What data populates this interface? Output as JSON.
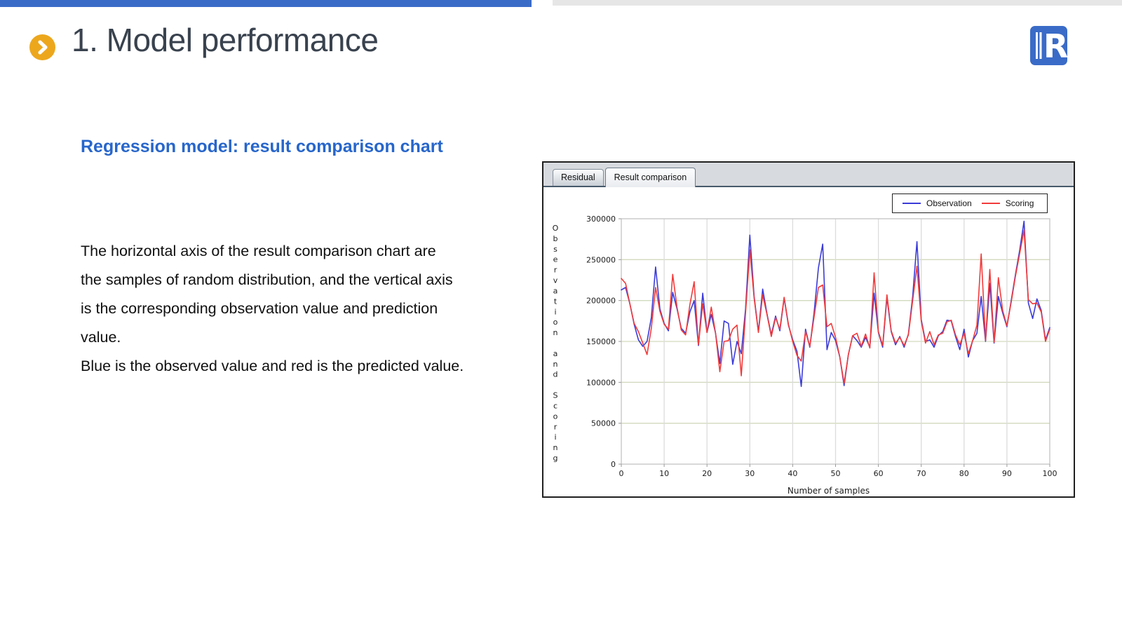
{
  "header": {
    "title": "1. Model performance",
    "bullet_icon": "chevron-right-circle",
    "logo_icon": "r-brand-logo"
  },
  "subtitle": "Regression model: result comparison chart",
  "body": {
    "lines": [
      "The horizontal axis of the result comparison chart are",
      "the samples of random distribution, and the vertical axis",
      "is the corresponding observation value and prediction",
      "value.",
      "Blue is the observed value and red is the predicted value."
    ]
  },
  "panel": {
    "tabs": [
      {
        "label": "Residual",
        "selected": false
      },
      {
        "label": "Result comparison",
        "selected": true
      }
    ]
  },
  "colors": {
    "accent_bar_blue": "#3a6bc7",
    "accent_bar_gray": "#e6e6e6",
    "bullet_amber": "#eda71d",
    "title_text": "#39424e",
    "subtitle_blue": "#2766cb",
    "observation_line": "#3b3bd9",
    "scoring_line": "#f23b3b",
    "grid_horizontal": "#d2dabe",
    "grid_vertical": "#dcdcdc",
    "plot_frame": "#c4c4c4"
  },
  "chart_data": {
    "type": "line",
    "title": "",
    "xlabel": "Number of samples",
    "ylabel": "Observation and Scoring",
    "xlim": [
      0,
      100
    ],
    "ylim": [
      0,
      300000
    ],
    "x_ticks": [
      0,
      10,
      20,
      30,
      40,
      50,
      60,
      70,
      80,
      90,
      100
    ],
    "y_ticks": [
      0,
      50000,
      100000,
      150000,
      200000,
      250000,
      300000
    ],
    "grid": true,
    "legend_position": "top-right",
    "x": [
      0,
      1,
      2,
      3,
      4,
      5,
      6,
      7,
      8,
      9,
      10,
      11,
      12,
      13,
      14,
      15,
      16,
      17,
      18,
      19,
      20,
      21,
      22,
      23,
      24,
      25,
      26,
      27,
      28,
      29,
      30,
      31,
      32,
      33,
      34,
      35,
      36,
      37,
      38,
      39,
      40,
      41,
      42,
      43,
      44,
      45,
      46,
      47,
      48,
      49,
      50,
      51,
      52,
      53,
      54,
      55,
      56,
      57,
      58,
      59,
      60,
      61,
      62,
      63,
      64,
      65,
      66,
      67,
      68,
      69,
      70,
      71,
      72,
      73,
      74,
      75,
      76,
      77,
      78,
      79,
      80,
      81,
      82,
      83,
      84,
      85,
      86,
      87,
      88,
      89,
      90,
      91,
      92,
      93,
      94,
      95,
      96,
      97,
      98,
      99,
      100
    ],
    "series": [
      {
        "name": "Observation",
        "color": "#3b3bd9",
        "values": [
          213000,
          216000,
          196000,
          171000,
          152000,
          144000,
          150000,
          179000,
          241000,
          190000,
          172000,
          163000,
          210000,
          190000,
          166000,
          160000,
          186000,
          200000,
          145000,
          209000,
          161000,
          183000,
          160000,
          123000,
          175000,
          172000,
          122000,
          150000,
          135000,
          190000,
          280000,
          205000,
          162000,
          214000,
          184000,
          158000,
          181000,
          163000,
          203000,
          170000,
          152000,
          138000,
          95000,
          165000,
          143000,
          185000,
          240000,
          269000,
          140000,
          161000,
          151000,
          131000,
          96000,
          134000,
          157000,
          151000,
          143000,
          155000,
          143000,
          209000,
          161000,
          143000,
          204000,
          162000,
          146000,
          156000,
          143000,
          159000,
          205000,
          272000,
          177000,
          150000,
          152000,
          143000,
          157000,
          162000,
          176000,
          175000,
          156000,
          140000,
          165000,
          131000,
          151000,
          160000,
          205000,
          150000,
          221000,
          148000,
          205000,
          185000,
          168000,
          200000,
          232000,
          262000,
          297000,
          197000,
          178000,
          202000,
          188000,
          152000,
          167000
        ]
      },
      {
        "name": "Scoring",
        "color": "#f23b3b",
        "values": [
          227000,
          221000,
          196000,
          172000,
          162000,
          148000,
          134000,
          166000,
          216000,
          187000,
          171000,
          165000,
          232000,
          192000,
          164000,
          158000,
          195000,
          223000,
          146000,
          196000,
          161000,
          192000,
          160000,
          113000,
          150000,
          151000,
          165000,
          170000,
          108000,
          185000,
          262000,
          203000,
          161000,
          207000,
          183000,
          156000,
          179000,
          165000,
          204000,
          171000,
          150000,
          133000,
          126000,
          162000,
          144000,
          180000,
          216000,
          219000,
          168000,
          172000,
          155000,
          131000,
          99000,
          134000,
          157000,
          160000,
          144000,
          159000,
          142000,
          234000,
          162000,
          145000,
          207000,
          163000,
          148000,
          155000,
          145000,
          158000,
          200000,
          242000,
          175000,
          148000,
          162000,
          146000,
          158000,
          160000,
          174000,
          176000,
          158000,
          146000,
          160000,
          135000,
          151000,
          170000,
          257000,
          151000,
          238000,
          149000,
          228000,
          188000,
          169000,
          198000,
          230000,
          258000,
          286000,
          201000,
          196000,
          197000,
          186000,
          150000,
          165000
        ]
      }
    ]
  }
}
